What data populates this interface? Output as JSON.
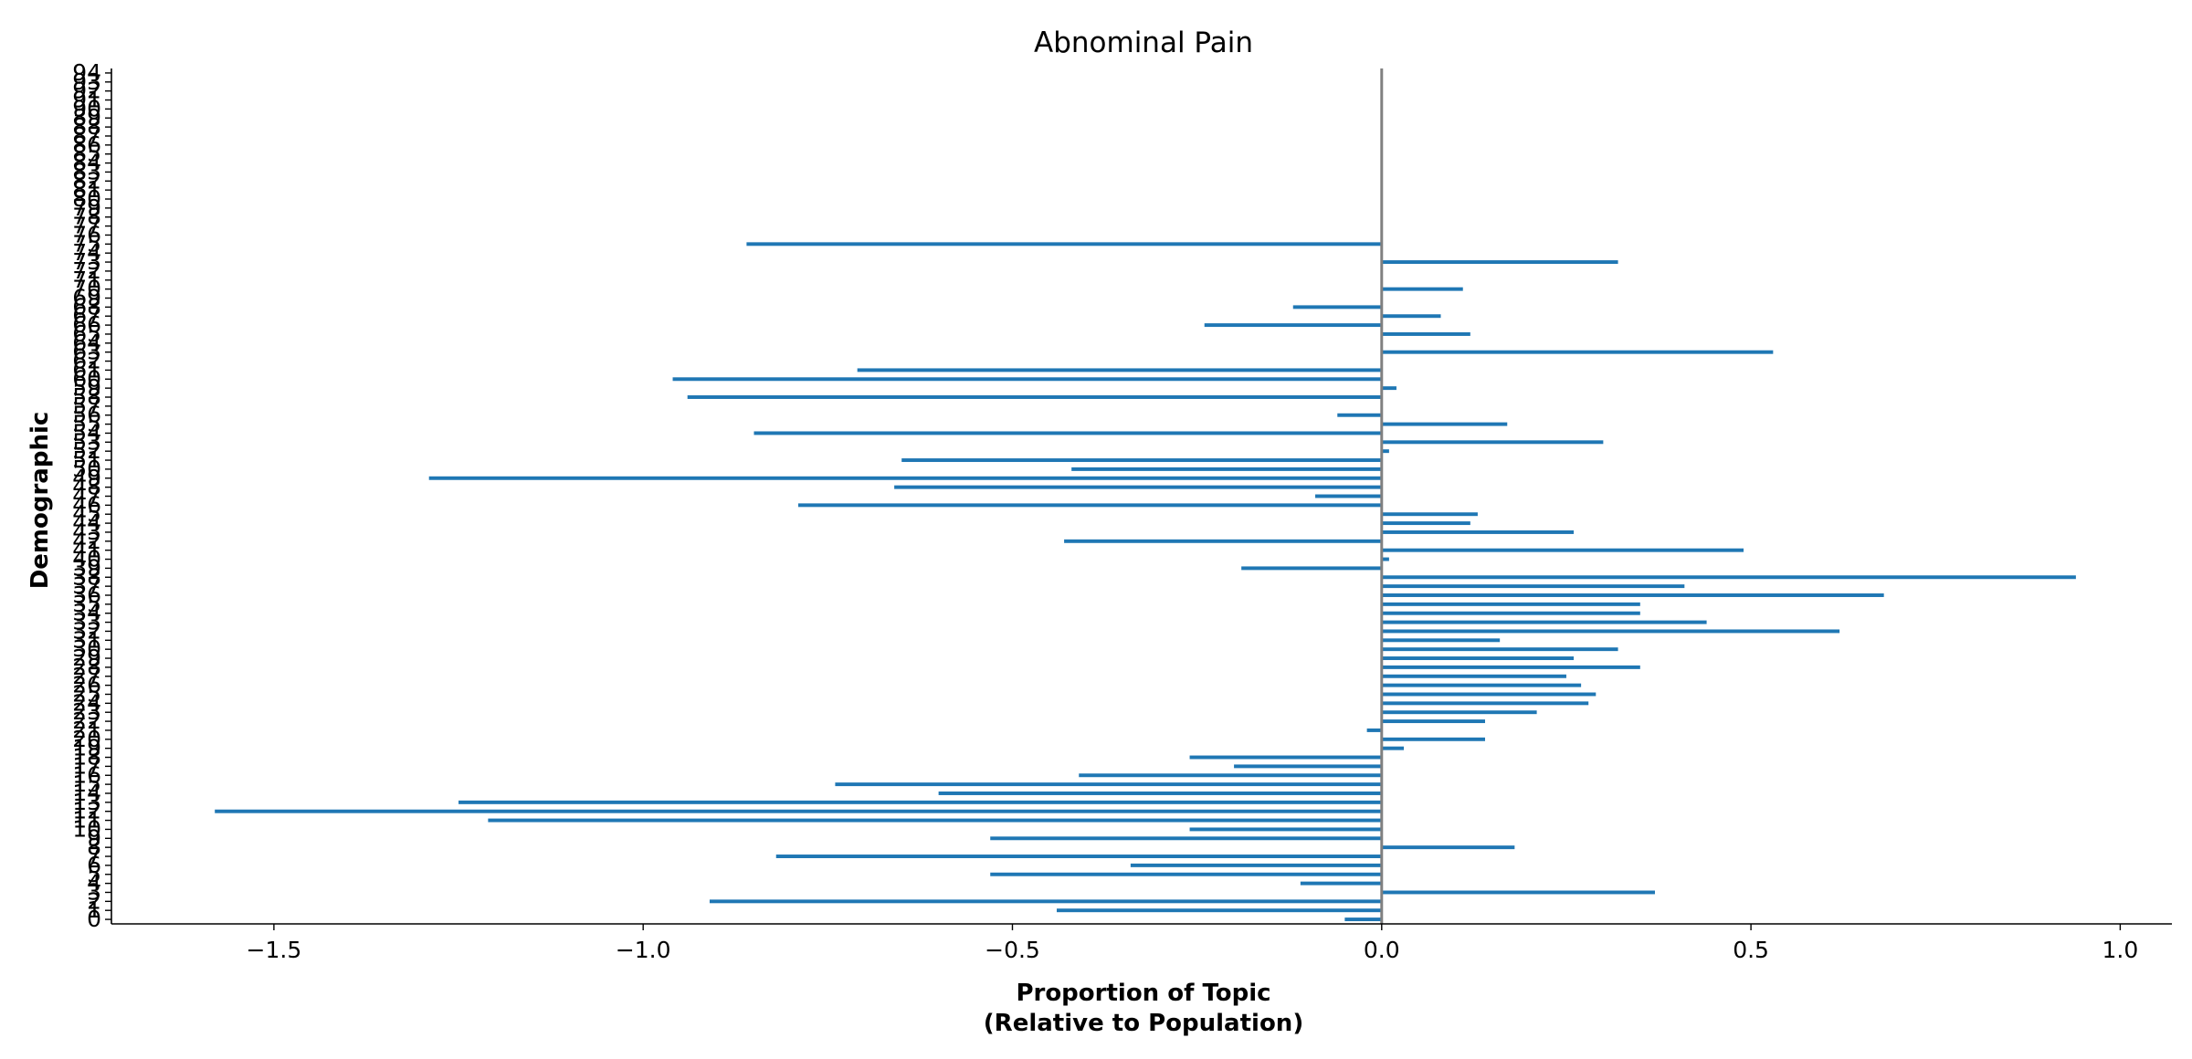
{
  "chart_data": {
    "type": "bar",
    "orientation": "horizontal",
    "title": "Abnominal Pain",
    "xlabel_lines": [
      "Proportion of Topic",
      "(Relative to Population)"
    ],
    "ylabel": "Demographic",
    "xlim": [
      -1.72,
      1.07
    ],
    "ylim": [
      -0.5,
      94.5
    ],
    "xticks": [
      -1.5,
      -1.0,
      -0.5,
      0.0,
      0.5,
      1.0
    ],
    "xtick_labels": [
      "−1.5",
      "−1.0",
      "−0.5",
      "0.0",
      "0.5",
      "1.0"
    ],
    "reference_line_x": 0.0,
    "grid": false,
    "bar_color": "#1f77b4",
    "categories": [
      0,
      1,
      2,
      3,
      4,
      5,
      6,
      7,
      8,
      9,
      10,
      11,
      12,
      13,
      14,
      15,
      16,
      17,
      18,
      19,
      20,
      21,
      22,
      23,
      24,
      25,
      26,
      27,
      28,
      29,
      30,
      31,
      32,
      33,
      34,
      35,
      36,
      37,
      38,
      39,
      40,
      41,
      42,
      43,
      44,
      45,
      46,
      47,
      48,
      49,
      50,
      51,
      52,
      53,
      54,
      55,
      56,
      57,
      58,
      59,
      60,
      61,
      62,
      63,
      64,
      65,
      66,
      67,
      68,
      69,
      70,
      71,
      72,
      73,
      74,
      75,
      76,
      77,
      78,
      79,
      80,
      81,
      82,
      83,
      84,
      85,
      86,
      87,
      88,
      89,
      90,
      91,
      92,
      93,
      94
    ],
    "values": [
      -0.05,
      -0.44,
      -0.91,
      0.37,
      -0.11,
      -0.53,
      -0.34,
      -0.82,
      0.18,
      -0.53,
      -0.26,
      -1.21,
      -1.58,
      -1.25,
      -0.6,
      -0.74,
      -0.41,
      -0.2,
      -0.26,
      0.03,
      0.14,
      -0.02,
      0.14,
      0.21,
      0.28,
      0.29,
      0.27,
      0.25,
      0.35,
      0.26,
      0.32,
      0.16,
      0.62,
      0.44,
      0.35,
      0.35,
      0.68,
      0.41,
      0.94,
      -0.19,
      0.01,
      0.49,
      -0.43,
      0.26,
      0.12,
      0.13,
      -0.79,
      -0.09,
      -0.66,
      -1.29,
      -0.42,
      -0.65,
      0.01,
      0.3,
      -0.85,
      0.17,
      -0.06,
      0.0,
      -0.94,
      0.02,
      -0.96,
      -0.71,
      0.0,
      0.53,
      0.0,
      0.12,
      -0.24,
      0.08,
      -0.12,
      0.0,
      0.11,
      0.0,
      0.0,
      0.32,
      0.0,
      -0.86,
      0.0,
      0.0,
      0.0,
      0.0,
      0.0,
      0.0,
      0.0,
      0.0,
      0.0,
      0.0,
      0.0,
      0.0,
      0.0,
      0.0,
      0.0,
      0.0,
      0.0,
      0.0,
      0.0
    ]
  }
}
